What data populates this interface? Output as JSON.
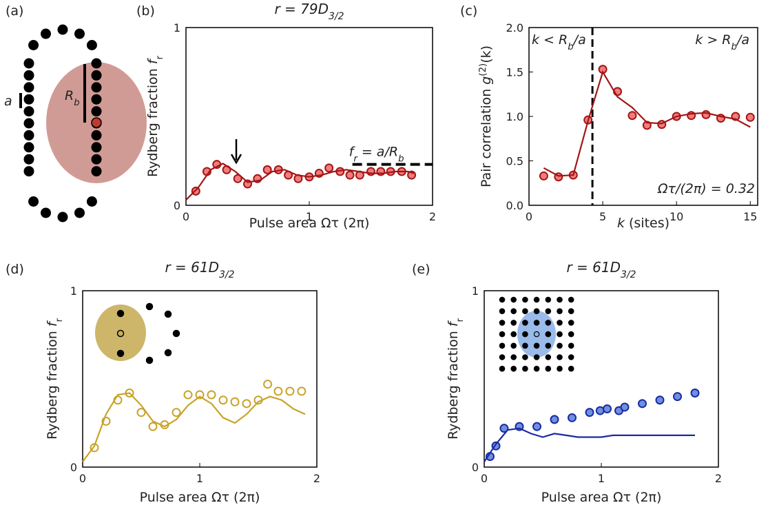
{
  "schematic": {
    "panel": "(a)",
    "spacing_label": "a",
    "radius_label": [
      {
        "text": "R"
      },
      {
        "text": "b",
        "sub": true
      }
    ]
  },
  "chart_data": [
    {
      "type": "line",
      "panel": "(b)",
      "title": [
        {
          "text": "r = 79D"
        },
        {
          "text": "3/2",
          "sub": true
        }
      ],
      "xlabel": "Pulse area Ωτ (2π)",
      "ylabel": [
        {
          "text": "Rydberg fraction "
        },
        {
          "text": "f",
          "italic": true
        },
        {
          "text": "r",
          "sub": true
        }
      ],
      "xlim": [
        0,
        2
      ],
      "ylim": [
        0,
        1
      ],
      "xticks": [
        0,
        1,
        2
      ],
      "yticks": [
        0,
        1
      ],
      "annotation": [
        {
          "text": "f"
        },
        {
          "text": "r",
          "sub": true
        },
        {
          "text": " = a/R"
        },
        {
          "text": "b",
          "sub": true
        }
      ],
      "hline": {
        "y": 0.23,
        "x": [
          1.35,
          2
        ]
      },
      "series": [
        {
          "kind": "markers",
          "color": "#a31515",
          "marker_fill": "#f07c7c",
          "x": [
            0.08,
            0.17,
            0.25,
            0.33,
            0.42,
            0.5,
            0.58,
            0.66,
            0.75,
            0.83,
            0.91,
            1.0,
            1.08,
            1.16,
            1.25,
            1.33,
            1.41,
            1.5,
            1.58,
            1.66,
            1.75,
            1.83
          ],
          "values": [
            0.08,
            0.19,
            0.23,
            0.2,
            0.15,
            0.12,
            0.15,
            0.2,
            0.2,
            0.17,
            0.15,
            0.16,
            0.18,
            0.21,
            0.19,
            0.17,
            0.17,
            0.19,
            0.19,
            0.19,
            0.19,
            0.17
          ]
        },
        {
          "kind": "line",
          "color": "#a31515",
          "x": [
            0,
            0.1,
            0.2,
            0.3,
            0.4,
            0.5,
            0.6,
            0.7,
            0.8,
            0.9,
            1.0,
            1.1,
            1.2,
            1.3,
            1.4,
            1.5,
            1.6,
            1.7,
            1.8,
            1.85
          ],
          "values": [
            0.03,
            0.1,
            0.2,
            0.235,
            0.19,
            0.13,
            0.14,
            0.19,
            0.2,
            0.17,
            0.16,
            0.17,
            0.19,
            0.2,
            0.19,
            0.18,
            0.18,
            0.19,
            0.19,
            0.18
          ]
        }
      ]
    },
    {
      "type": "line",
      "panel": "(c)",
      "xlabel": [
        {
          "text": "k",
          "italic": true
        },
        {
          "text": " (sites)"
        }
      ],
      "ylabel": [
        {
          "text": "Pair correlation "
        },
        {
          "text": "g",
          "italic": true
        },
        {
          "text": "(2)",
          "sup": true
        },
        {
          "text": "(k)"
        }
      ],
      "xlim": [
        0,
        15.5
      ],
      "ylim": [
        0,
        2
      ],
      "xticks": [
        0,
        5,
        10,
        15
      ],
      "yticks": [
        {
          "value": 0,
          "label": "0.0"
        },
        0.5,
        {
          "value": 1,
          "label": "1.0"
        },
        1.5,
        {
          "value": 2,
          "label": "2.0"
        }
      ],
      "vline": 4.3,
      "region_left": [
        {
          "text": "k < R"
        },
        {
          "text": "b",
          "sub": true
        },
        {
          "text": "/a"
        }
      ],
      "region_right": [
        {
          "text": "k > R"
        },
        {
          "text": "b",
          "sub": true
        },
        {
          "text": "/a"
        }
      ],
      "annotation": "Ωτ/(2π) = 0.32",
      "series": [
        {
          "kind": "markers",
          "color": "#a31515",
          "marker_fill": "#f07c7c",
          "x": [
            1,
            2,
            3,
            4,
            5,
            6,
            7,
            8,
            9,
            10,
            11,
            12,
            13,
            14,
            15
          ],
          "values": [
            0.33,
            0.32,
            0.34,
            0.96,
            1.53,
            1.28,
            1.01,
            0.9,
            0.91,
            1.0,
            1.01,
            1.02,
            0.98,
            1.0,
            0.99
          ]
        },
        {
          "kind": "line",
          "color": "#a31515",
          "x": [
            1,
            2,
            3,
            4,
            5,
            6,
            7,
            8,
            9,
            10,
            11,
            12,
            13,
            14,
            15
          ],
          "values": [
            0.42,
            0.33,
            0.34,
            0.95,
            1.5,
            1.22,
            1.1,
            0.93,
            0.92,
            1.0,
            1.03,
            1.04,
            1.0,
            0.97,
            0.88
          ]
        }
      ]
    },
    {
      "type": "line",
      "panel": "(d)",
      "title": [
        {
          "text": "r = 61D"
        },
        {
          "text": "3/2",
          "sub": true
        }
      ],
      "xlabel": "Pulse area Ωτ (2π)",
      "ylabel": [
        {
          "text": "Rydberg fraction "
        },
        {
          "text": "f",
          "italic": true
        },
        {
          "text": "r",
          "sub": true
        }
      ],
      "xlim": [
        0,
        2
      ],
      "ylim": [
        0,
        1
      ],
      "xticks": [
        0,
        1,
        2
      ],
      "yticks": [
        0,
        1
      ],
      "inset": "ring",
      "series": [
        {
          "kind": "markers",
          "color": "#c9a227",
          "marker_fill": "none",
          "x": [
            0.1,
            0.2,
            0.3,
            0.4,
            0.5,
            0.6,
            0.7,
            0.8,
            0.9,
            1.0,
            1.1,
            1.2,
            1.3,
            1.4,
            1.5,
            1.58,
            1.67,
            1.77,
            1.87
          ],
          "values": [
            0.11,
            0.26,
            0.38,
            0.42,
            0.31,
            0.23,
            0.24,
            0.31,
            0.41,
            0.41,
            0.41,
            0.38,
            0.37,
            0.36,
            0.38,
            0.47,
            0.43,
            0.43,
            0.43
          ]
        },
        {
          "kind": "line",
          "color": "#c9a227",
          "x": [
            0,
            0.1,
            0.2,
            0.3,
            0.4,
            0.5,
            0.6,
            0.7,
            0.8,
            0.9,
            1.0,
            1.1,
            1.2,
            1.3,
            1.4,
            1.5,
            1.6,
            1.7,
            1.8,
            1.9
          ],
          "values": [
            0.03,
            0.12,
            0.3,
            0.41,
            0.42,
            0.35,
            0.26,
            0.23,
            0.27,
            0.35,
            0.4,
            0.36,
            0.28,
            0.25,
            0.3,
            0.37,
            0.4,
            0.38,
            0.33,
            0.3
          ]
        }
      ]
    },
    {
      "type": "line",
      "panel": "(e)",
      "title": [
        {
          "text": "r = 61D"
        },
        {
          "text": "3/2",
          "sub": true
        }
      ],
      "xlabel": "Pulse area Ωτ (2π)",
      "ylabel": [
        {
          "text": "Rydberg fraction "
        },
        {
          "text": "f",
          "italic": true
        },
        {
          "text": "r",
          "sub": true
        }
      ],
      "xlim": [
        0,
        2
      ],
      "ylim": [
        0,
        1
      ],
      "xticks": [
        0,
        1,
        2
      ],
      "yticks": [
        0,
        1
      ],
      "inset": "grid",
      "series": [
        {
          "kind": "markers",
          "color": "#1a2aa0",
          "marker_fill": "#6f8fe0",
          "x": [
            0.05,
            0.1,
            0.17,
            0.3,
            0.45,
            0.6,
            0.75,
            0.9,
            0.99,
            1.05,
            1.15,
            1.2,
            1.35,
            1.5,
            1.65,
            1.8
          ],
          "values": [
            0.06,
            0.12,
            0.22,
            0.23,
            0.23,
            0.27,
            0.28,
            0.31,
            0.32,
            0.33,
            0.32,
            0.34,
            0.36,
            0.38,
            0.4,
            0.42
          ]
        },
        {
          "kind": "line",
          "color": "#1a2aa0",
          "x": [
            0,
            0.1,
            0.2,
            0.3,
            0.4,
            0.5,
            0.6,
            0.7,
            0.8,
            0.9,
            1.0,
            1.1,
            1.2,
            1.3,
            1.4,
            1.5,
            1.6,
            1.7,
            1.8
          ],
          "values": [
            0.03,
            0.13,
            0.21,
            0.22,
            0.19,
            0.17,
            0.19,
            0.18,
            0.17,
            0.17,
            0.17,
            0.18,
            0.18,
            0.18,
            0.18,
            0.18,
            0.18,
            0.18,
            0.18
          ]
        }
      ]
    }
  ]
}
